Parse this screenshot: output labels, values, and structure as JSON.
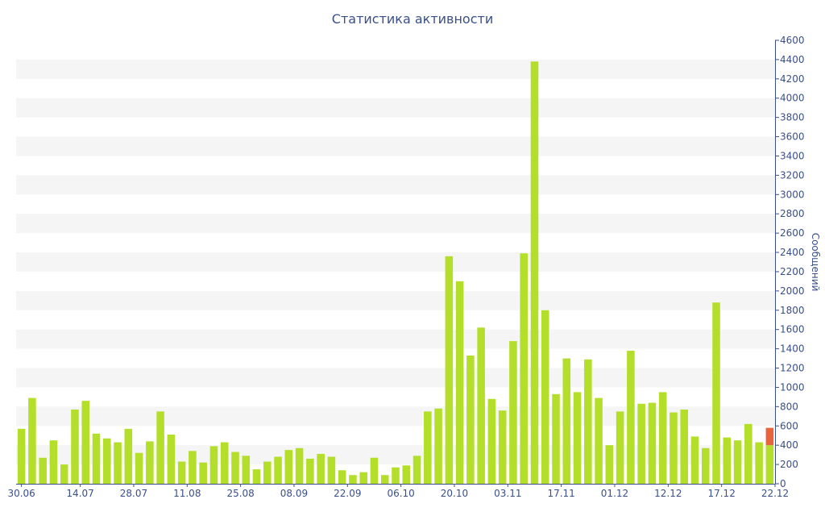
{
  "chart_data": {
    "type": "bar",
    "title": "Статистика активности",
    "ylabel": "Сообщений",
    "xlabel": "",
    "ylim": [
      0,
      4600
    ],
    "y_ticks": [
      0,
      200,
      400,
      600,
      800,
      1000,
      1200,
      1400,
      1600,
      1800,
      2000,
      2200,
      2400,
      2600,
      2800,
      3000,
      3200,
      3400,
      3600,
      3800,
      4000,
      4200,
      4400,
      4600
    ],
    "x_tick_labels": [
      {
        "label": "30.06",
        "index": 0
      },
      {
        "label": "14.07",
        "index": 5.5
      },
      {
        "label": "28.07",
        "index": 10.5
      },
      {
        "label": "11.08",
        "index": 15.5
      },
      {
        "label": "25.08",
        "index": 20.5
      },
      {
        "label": "08.09",
        "index": 25.5
      },
      {
        "label": "22.09",
        "index": 30.5
      },
      {
        "label": "06.10",
        "index": 35.5
      },
      {
        "label": "20.10",
        "index": 40.5
      },
      {
        "label": "03.11",
        "index": 45.5
      },
      {
        "label": "17.11",
        "index": 50.5
      },
      {
        "label": "01.12",
        "index": 55.5
      },
      {
        "label": "12.12",
        "index": 60.5
      },
      {
        "label": "17.12",
        "index": 65.5
      },
      {
        "label": "22.12",
        "index": 70.5
      }
    ],
    "values": [
      570,
      890,
      270,
      450,
      200,
      770,
      860,
      520,
      470,
      430,
      570,
      320,
      440,
      750,
      510,
      230,
      340,
      220,
      390,
      430,
      330,
      290,
      150,
      230,
      280,
      350,
      370,
      260,
      310,
      280,
      140,
      90,
      120,
      270,
      90,
      170,
      190,
      290,
      750,
      780,
      2360,
      2100,
      1330,
      1620,
      880,
      760,
      1480,
      2390,
      4380,
      1800,
      930,
      1300,
      950,
      1290,
      890,
      400,
      750,
      1380,
      830,
      840,
      950,
      740,
      770,
      490,
      370,
      1880,
      480,
      450,
      620,
      430,
      580
    ],
    "last_bar_partial_value": 400,
    "colors": {
      "bar": "#b3df2a",
      "current_bar": "#e8643c",
      "band": "#f5f5f5",
      "axis": "#3a4f8a"
    },
    "grid": "alternating-bands",
    "legend": "none",
    "y_axis_position": "right"
  }
}
